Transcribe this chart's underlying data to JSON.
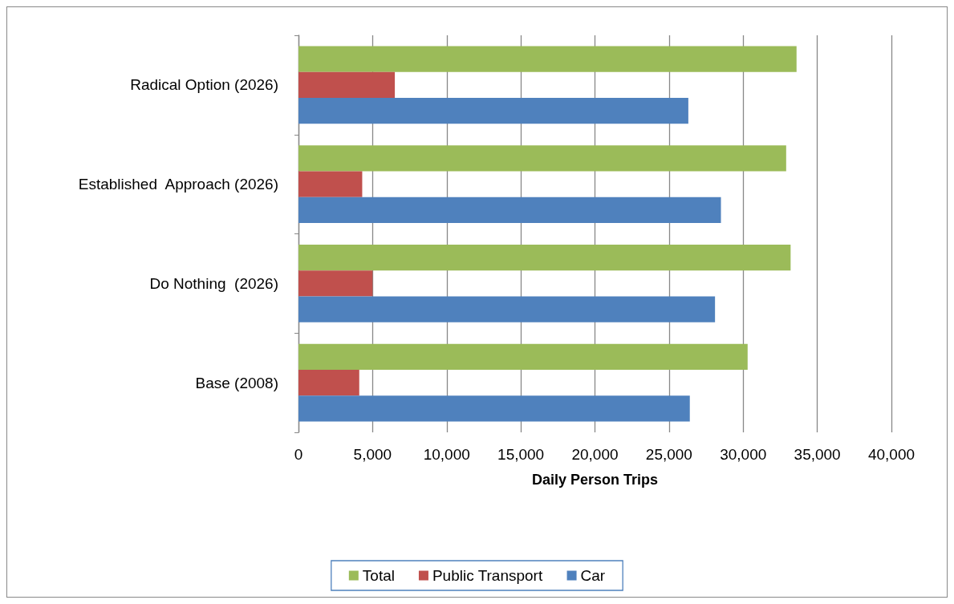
{
  "chart_data": {
    "type": "bar",
    "orientation": "horizontal",
    "xlabel": "Daily Person Trips",
    "categories": [
      "Radical Option (2026)",
      "Established  Approach (2026)",
      "Do Nothing  (2026)",
      "Base (2008)"
    ],
    "series": [
      {
        "name": "Total",
        "color": "#9bbb59",
        "values": [
          33600,
          32900,
          33200,
          30300
        ]
      },
      {
        "name": "Public Transport",
        "color": "#c0504d",
        "values": [
          6500,
          4300,
          5000,
          4100
        ]
      },
      {
        "name": "Car",
        "color": "#4f81bd",
        "values": [
          26300,
          28500,
          28100,
          26400
        ]
      }
    ],
    "xlim": [
      0,
      40000
    ],
    "xticks": [
      0,
      {
        "value": 5000,
        "label": "5,000"
      },
      {
        "value": 10000,
        "label": "10,000"
      },
      {
        "value": 15000,
        "label": "15,000"
      },
      {
        "value": 20000,
        "label": "20,000"
      },
      {
        "value": 25000,
        "label": "25,000"
      },
      {
        "value": 30000,
        "label": "30,000"
      },
      {
        "value": 35000,
        "label": "35,000"
      },
      {
        "value": 40000,
        "label": "40,000"
      }
    ],
    "grid": "x",
    "legend": "bottom"
  }
}
